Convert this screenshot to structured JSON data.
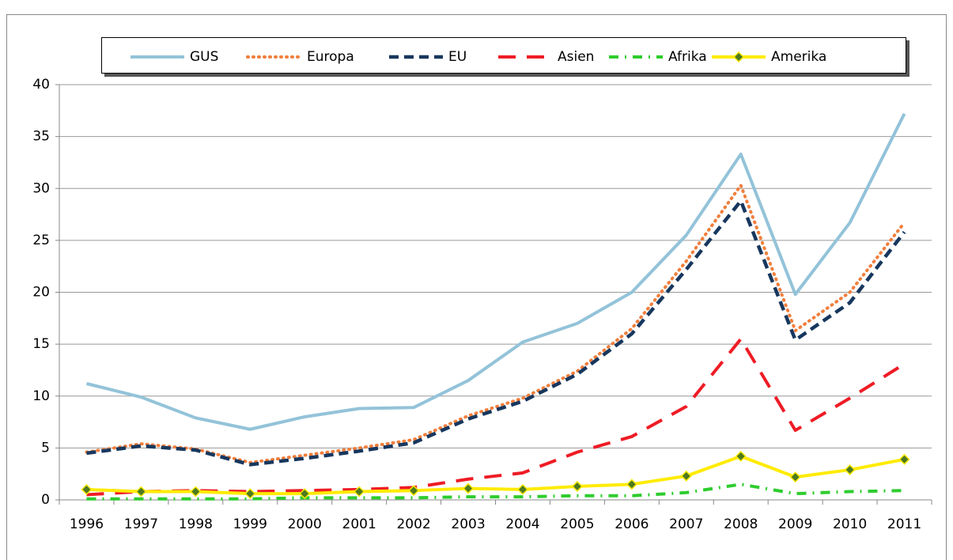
{
  "chart_data": {
    "type": "line",
    "categories": [
      "1996",
      "1997",
      "1998",
      "1999",
      "2000",
      "2001",
      "2002",
      "2003",
      "2004",
      "2005",
      "2006",
      "2007",
      "2008",
      "2009",
      "2010",
      "2011"
    ],
    "series": [
      {
        "name": "GUS",
        "color": "#93c3d9",
        "style": "solid",
        "values": [
          11.2,
          9.9,
          7.9,
          6.8,
          8.0,
          8.8,
          8.9,
          11.5,
          15.2,
          17.0,
          20.0,
          25.5,
          33.3,
          19.8,
          26.7,
          37.2
        ]
      },
      {
        "name": "Europa",
        "color": "#f07f3c",
        "style": "dotted",
        "values": [
          4.6,
          5.4,
          4.9,
          3.6,
          4.3,
          5.0,
          5.8,
          8.1,
          9.8,
          12.4,
          16.5,
          23.0,
          30.3,
          16.3,
          20.0,
          26.7
        ]
      },
      {
        "name": "EU",
        "color": "#17375e",
        "style": "dashed",
        "values": [
          4.5,
          5.2,
          4.8,
          3.4,
          4.0,
          4.7,
          5.5,
          7.8,
          9.5,
          12.1,
          16.0,
          22.2,
          28.8,
          15.4,
          19.0,
          25.8
        ]
      },
      {
        "name": "Asien",
        "color": "#ee1c25",
        "style": "longdash",
        "values": [
          0.5,
          0.8,
          0.9,
          0.8,
          0.9,
          1.0,
          1.2,
          2.0,
          2.6,
          4.6,
          6.1,
          9.0,
          15.5,
          6.7,
          9.8,
          13.1
        ]
      },
      {
        "name": "Afrika",
        "color": "#2ecc2e",
        "style": "dashdot",
        "values": [
          0.1,
          0.1,
          0.1,
          0.1,
          0.2,
          0.2,
          0.2,
          0.3,
          0.3,
          0.4,
          0.4,
          0.7,
          1.5,
          0.6,
          0.8,
          0.9
        ]
      },
      {
        "name": "Amerika",
        "color": "#ffeb00",
        "style": "solid",
        "marker": "diamond",
        "marker_color": "#4e7a1e",
        "values": [
          1.0,
          0.8,
          0.8,
          0.6,
          0.6,
          0.8,
          0.9,
          1.1,
          1.0,
          1.3,
          1.5,
          2.3,
          4.2,
          2.2,
          2.9,
          3.9
        ]
      }
    ],
    "ylim": [
      0,
      40
    ],
    "yticks": [
      0,
      5,
      10,
      15,
      20,
      25,
      30,
      35,
      40
    ],
    "grid": true,
    "legend": "top"
  }
}
